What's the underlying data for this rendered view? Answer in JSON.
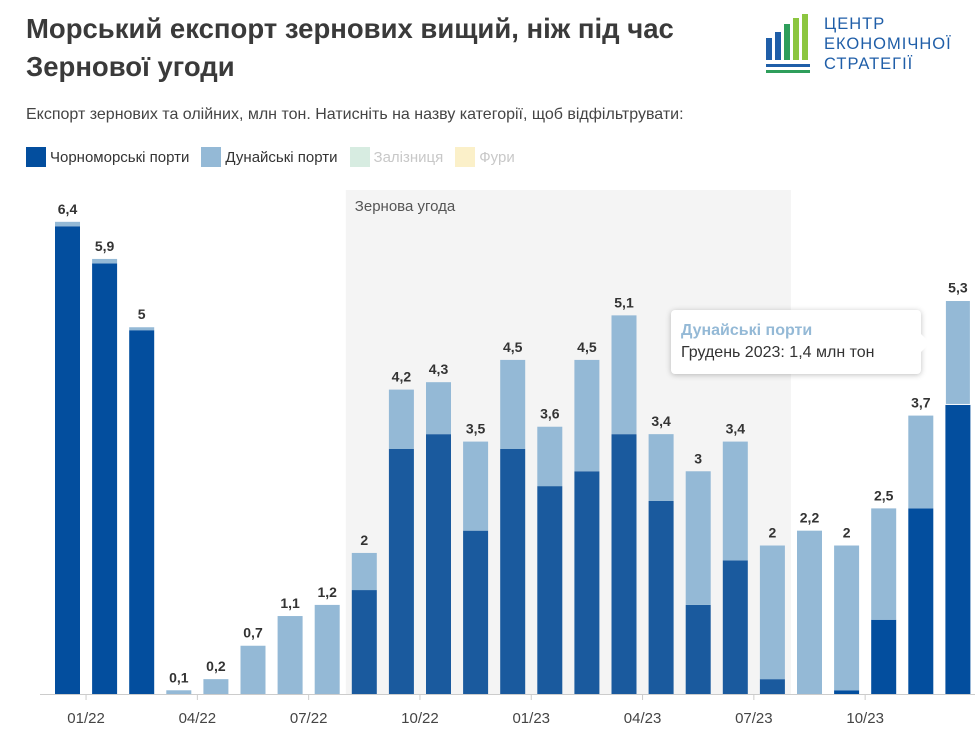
{
  "header": {
    "title_line1": "Морський експорт зернових вищий, ніж під час",
    "title_line2": "Зернової угоди",
    "subtitle": "Експорт зернових та олійних, млн тон. Натисніть на назву категорії, щоб відфільтрувати:"
  },
  "logo": {
    "line1": "ЦЕНТР",
    "line2": "ЕКОНОМІЧНОЇ",
    "line3": "СТРАТЕГІЇ",
    "colors": [
      "#1f5ea8",
      "#2e9e5b",
      "#8cc63f"
    ]
  },
  "legend": [
    {
      "label": "Чорноморські порти",
      "color": "#034e9e",
      "active": true
    },
    {
      "label": "Дунайські порти",
      "color": "#94b9d6",
      "active": true
    },
    {
      "label": "Залізниця",
      "color": "#d7ece1",
      "active": false
    },
    {
      "label": "Фури",
      "color": "#fbf0c9",
      "active": false
    }
  ],
  "tooltip": {
    "series": "Дунайські порти",
    "text": "Грудень 2023: 1,4 млн тон"
  },
  "chart_data": {
    "type": "bar",
    "stacked": true,
    "x_ticks": [
      "01/22",
      "04/22",
      "07/22",
      "10/22",
      "01/23",
      "04/23",
      "07/23",
      "10/23"
    ],
    "shaded_region": {
      "label": "Зернова угода",
      "from_index": 8,
      "to_index": 19
    },
    "series": [
      {
        "name": "Чорноморські порти",
        "color": "#034e9e",
        "values": [
          6.3,
          5.8,
          4.9,
          0,
          0,
          0,
          0,
          0,
          1.4,
          3.3,
          3.5,
          2.2,
          3.3,
          2.8,
          3.0,
          3.5,
          2.6,
          1.2,
          1.8,
          0.2,
          0,
          0.05,
          1.0,
          2.5,
          3.9
        ]
      },
      {
        "name": "Дунайські порти",
        "color": "#94b9d6",
        "values": [
          0.06,
          0.06,
          0.04,
          0.05,
          0.2,
          0.65,
          1.05,
          1.2,
          0.5,
          0.8,
          0.7,
          1.2,
          1.2,
          0.8,
          1.5,
          1.6,
          0.9,
          1.8,
          1.6,
          1.8,
          2.2,
          1.95,
          1.5,
          1.25,
          1.4
        ]
      }
    ],
    "totals": [
      "6,4",
      "5,9",
      "5",
      "0,1",
      "0,2",
      "0,7",
      "1,1",
      "1,2",
      "2",
      "4,2",
      "4,3",
      "3,5",
      "4,5",
      "3,6",
      "4,5",
      "5,1",
      "3,4",
      "3",
      "3,4",
      "2",
      "2,2",
      "2",
      "2,5",
      "3,7",
      "5,3"
    ],
    "highlight_index": 24,
    "ylim": [
      0,
      6.6
    ],
    "xlabel": "",
    "ylabel": ""
  }
}
